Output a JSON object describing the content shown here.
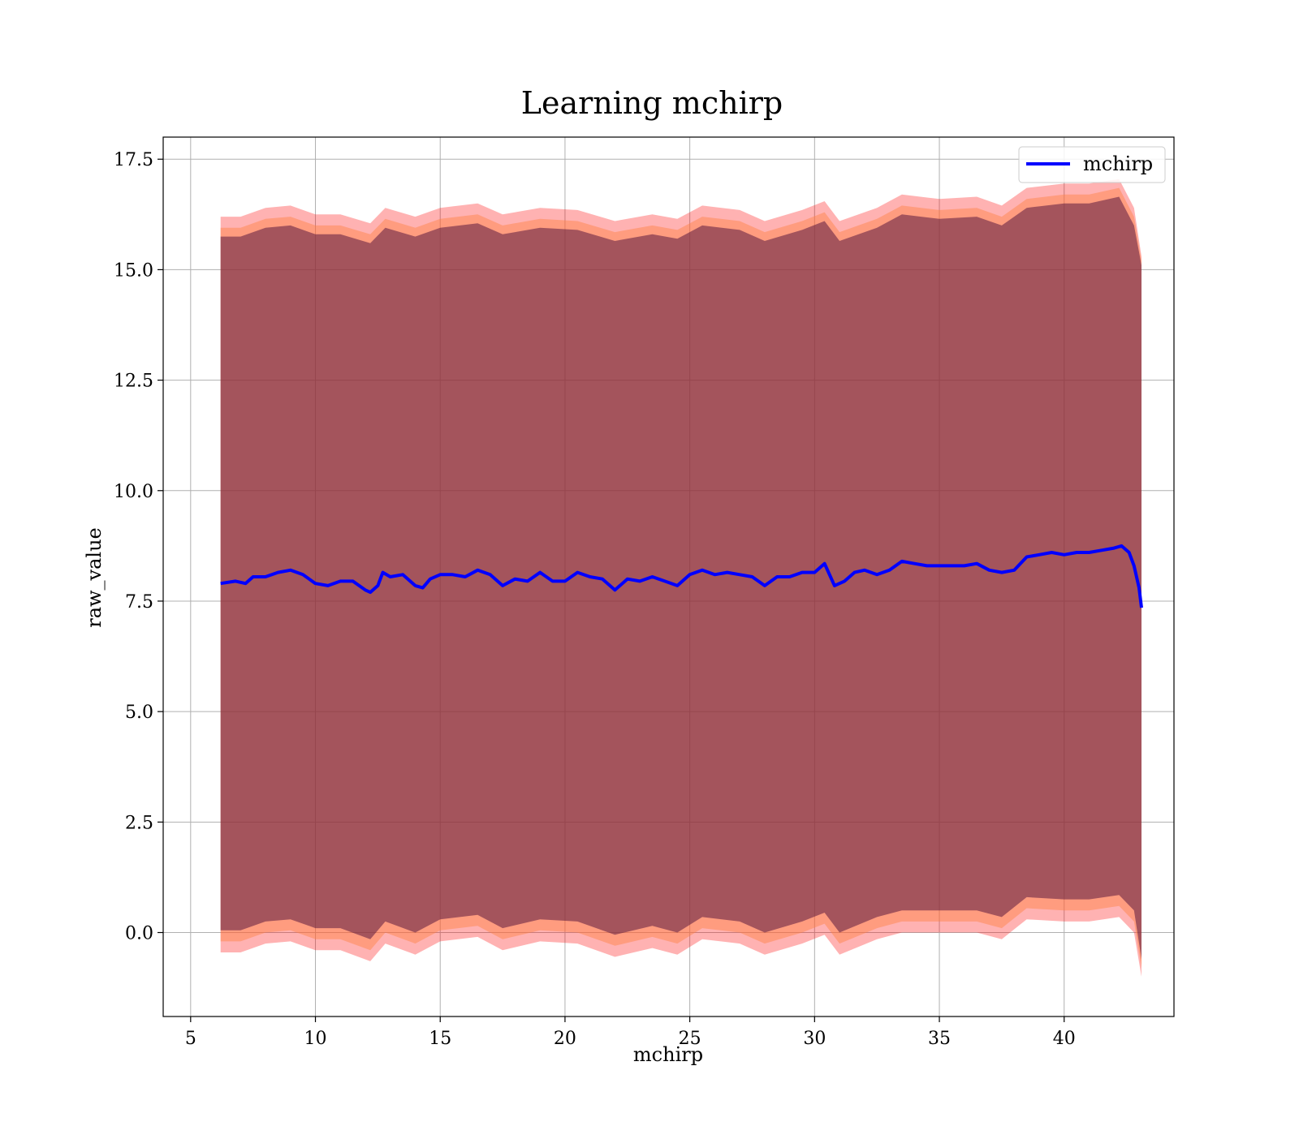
{
  "chart_data": {
    "type": "line",
    "title": "Learning mchirp",
    "xlabel": "mchirp",
    "ylabel": "raw_value",
    "xlim": [
      3.9,
      44.4
    ],
    "ylim": [
      -1.9,
      18.0
    ],
    "x_ticks": [
      5,
      10,
      15,
      20,
      25,
      30,
      35,
      40
    ],
    "x_tick_labels": [
      "5",
      "10",
      "15",
      "20",
      "25",
      "30",
      "35",
      "40"
    ],
    "y_ticks": [
      0.0,
      2.5,
      5.0,
      7.5,
      10.0,
      12.5,
      15.0,
      17.5
    ],
    "y_tick_labels": [
      "0.0",
      "2.5",
      "5.0",
      "7.5",
      "10.0",
      "12.5",
      "15.0",
      "17.5"
    ],
    "grid": true,
    "legend": {
      "placement": "top-right",
      "entries": [
        "mchirp"
      ]
    },
    "series": [
      {
        "name": "mchirp",
        "color": "#0000ff",
        "x": [
          6.2,
          6.8,
          7.2,
          7.5,
          8.0,
          8.5,
          9.0,
          9.5,
          10.0,
          10.5,
          11.0,
          11.5,
          12.0,
          12.2,
          12.5,
          12.7,
          13.0,
          13.5,
          14.0,
          14.3,
          14.6,
          15.0,
          15.5,
          16.0,
          16.5,
          17.0,
          17.5,
          18.0,
          18.5,
          19.0,
          19.5,
          20.0,
          20.5,
          21.0,
          21.5,
          22.0,
          22.5,
          23.0,
          23.5,
          24.0,
          24.5,
          25.0,
          25.5,
          26.0,
          26.5,
          27.0,
          27.5,
          28.0,
          28.5,
          29.0,
          29.5,
          30.0,
          30.4,
          30.8,
          31.2,
          31.6,
          32.0,
          32.5,
          33.0,
          33.5,
          34.0,
          34.5,
          35.0,
          35.5,
          36.0,
          36.5,
          37.0,
          37.5,
          38.0,
          38.5,
          39.0,
          39.5,
          40.0,
          40.5,
          41.0,
          41.5,
          42.0,
          42.3,
          42.6,
          42.8,
          43.0,
          43.1
        ],
        "y": [
          7.9,
          7.95,
          7.9,
          8.05,
          8.05,
          8.15,
          8.2,
          8.1,
          7.9,
          7.85,
          7.95,
          7.95,
          7.75,
          7.7,
          7.85,
          8.15,
          8.05,
          8.1,
          7.85,
          7.8,
          8.0,
          8.1,
          8.1,
          8.05,
          8.2,
          8.1,
          7.85,
          8.0,
          7.95,
          8.15,
          7.95,
          7.95,
          8.15,
          8.05,
          8.0,
          7.75,
          8.0,
          7.95,
          8.05,
          7.95,
          7.85,
          8.1,
          8.2,
          8.1,
          8.15,
          8.1,
          8.05,
          7.85,
          8.05,
          8.05,
          8.15,
          8.15,
          8.35,
          7.85,
          7.95,
          8.15,
          8.2,
          8.1,
          8.2,
          8.4,
          8.35,
          8.3,
          8.3,
          8.3,
          8.3,
          8.35,
          8.2,
          8.15,
          8.2,
          8.5,
          8.55,
          8.6,
          8.55,
          8.6,
          8.6,
          8.65,
          8.7,
          8.75,
          8.6,
          8.3,
          7.8,
          7.35
        ]
      }
    ],
    "bands": [
      {
        "color": "#ff0000",
        "opacity": 0.3,
        "x": [
          6.2,
          7.0,
          8.0,
          9.0,
          10.0,
          11.0,
          12.2,
          12.8,
          14.0,
          15.0,
          16.5,
          17.5,
          19.0,
          20.5,
          22.0,
          23.5,
          24.5,
          25.5,
          27.0,
          28.0,
          29.5,
          30.4,
          31.0,
          32.5,
          33.5,
          35.0,
          36.5,
          37.5,
          38.5,
          40.0,
          41.0,
          42.2,
          42.8,
          43.1
        ],
        "upper": [
          16.2,
          16.2,
          16.4,
          16.45,
          16.25,
          16.25,
          16.05,
          16.4,
          16.2,
          16.4,
          16.5,
          16.25,
          16.4,
          16.35,
          16.1,
          16.25,
          16.15,
          16.45,
          16.35,
          16.1,
          16.35,
          16.55,
          16.1,
          16.4,
          16.7,
          16.6,
          16.65,
          16.45,
          16.85,
          16.95,
          16.95,
          17.05,
          16.4,
          15.3
        ],
        "lower": [
          -0.45,
          -0.45,
          -0.25,
          -0.2,
          -0.4,
          -0.4,
          -0.65,
          -0.25,
          -0.5,
          -0.2,
          -0.1,
          -0.4,
          -0.2,
          -0.25,
          -0.55,
          -0.35,
          -0.5,
          -0.15,
          -0.25,
          -0.5,
          -0.25,
          -0.05,
          -0.5,
          -0.15,
          0.0,
          0.0,
          0.0,
          -0.15,
          0.3,
          0.25,
          0.25,
          0.35,
          0.0,
          -1.0
        ]
      },
      {
        "color": "#ff8040",
        "opacity": 0.45,
        "x": [
          6.2,
          7.0,
          8.0,
          9.0,
          10.0,
          11.0,
          12.2,
          12.8,
          14.0,
          15.0,
          16.5,
          17.5,
          19.0,
          20.5,
          22.0,
          23.5,
          24.5,
          25.5,
          27.0,
          28.0,
          29.5,
          30.4,
          31.0,
          32.5,
          33.5,
          35.0,
          36.5,
          37.5,
          38.5,
          40.0,
          41.0,
          42.2,
          42.8,
          43.1
        ],
        "upper": [
          15.95,
          15.95,
          16.15,
          16.2,
          16.0,
          16.0,
          15.8,
          16.15,
          15.95,
          16.15,
          16.25,
          16.0,
          16.15,
          16.1,
          15.85,
          16.0,
          15.9,
          16.2,
          16.1,
          15.85,
          16.1,
          16.3,
          15.85,
          16.15,
          16.45,
          16.35,
          16.4,
          16.2,
          16.6,
          16.7,
          16.7,
          16.85,
          16.2,
          15.2
        ],
        "lower": [
          -0.2,
          -0.2,
          0.0,
          0.05,
          -0.15,
          -0.15,
          -0.4,
          0.0,
          -0.25,
          0.05,
          0.15,
          -0.15,
          0.05,
          0.0,
          -0.3,
          -0.1,
          -0.25,
          0.1,
          0.0,
          -0.25,
          0.0,
          0.2,
          -0.25,
          0.1,
          0.25,
          0.25,
          0.25,
          0.1,
          0.55,
          0.5,
          0.5,
          0.6,
          0.25,
          -0.8
        ]
      },
      {
        "color": "#5a1a40",
        "opacity": 0.55,
        "x": [
          6.2,
          7.0,
          8.0,
          9.0,
          10.0,
          11.0,
          12.2,
          12.8,
          14.0,
          15.0,
          16.5,
          17.5,
          19.0,
          20.5,
          22.0,
          23.5,
          24.5,
          25.5,
          27.0,
          28.0,
          29.5,
          30.4,
          31.0,
          32.5,
          33.5,
          35.0,
          36.5,
          37.5,
          38.5,
          40.0,
          41.0,
          42.2,
          42.8,
          43.1
        ],
        "upper": [
          15.75,
          15.75,
          15.95,
          16.0,
          15.8,
          15.8,
          15.6,
          15.95,
          15.75,
          15.95,
          16.05,
          15.8,
          15.95,
          15.9,
          15.65,
          15.8,
          15.7,
          16.0,
          15.9,
          15.65,
          15.9,
          16.1,
          15.65,
          15.95,
          16.25,
          16.15,
          16.2,
          16.0,
          16.4,
          16.5,
          16.5,
          16.65,
          16.0,
          15.1
        ],
        "lower": [
          0.05,
          0.05,
          0.25,
          0.3,
          0.1,
          0.1,
          -0.15,
          0.25,
          0.0,
          0.3,
          0.4,
          0.1,
          0.3,
          0.25,
          -0.05,
          0.15,
          0.0,
          0.35,
          0.25,
          0.0,
          0.25,
          0.45,
          0.0,
          0.35,
          0.5,
          0.5,
          0.5,
          0.35,
          0.8,
          0.75,
          0.75,
          0.85,
          0.5,
          -0.6
        ]
      }
    ]
  }
}
